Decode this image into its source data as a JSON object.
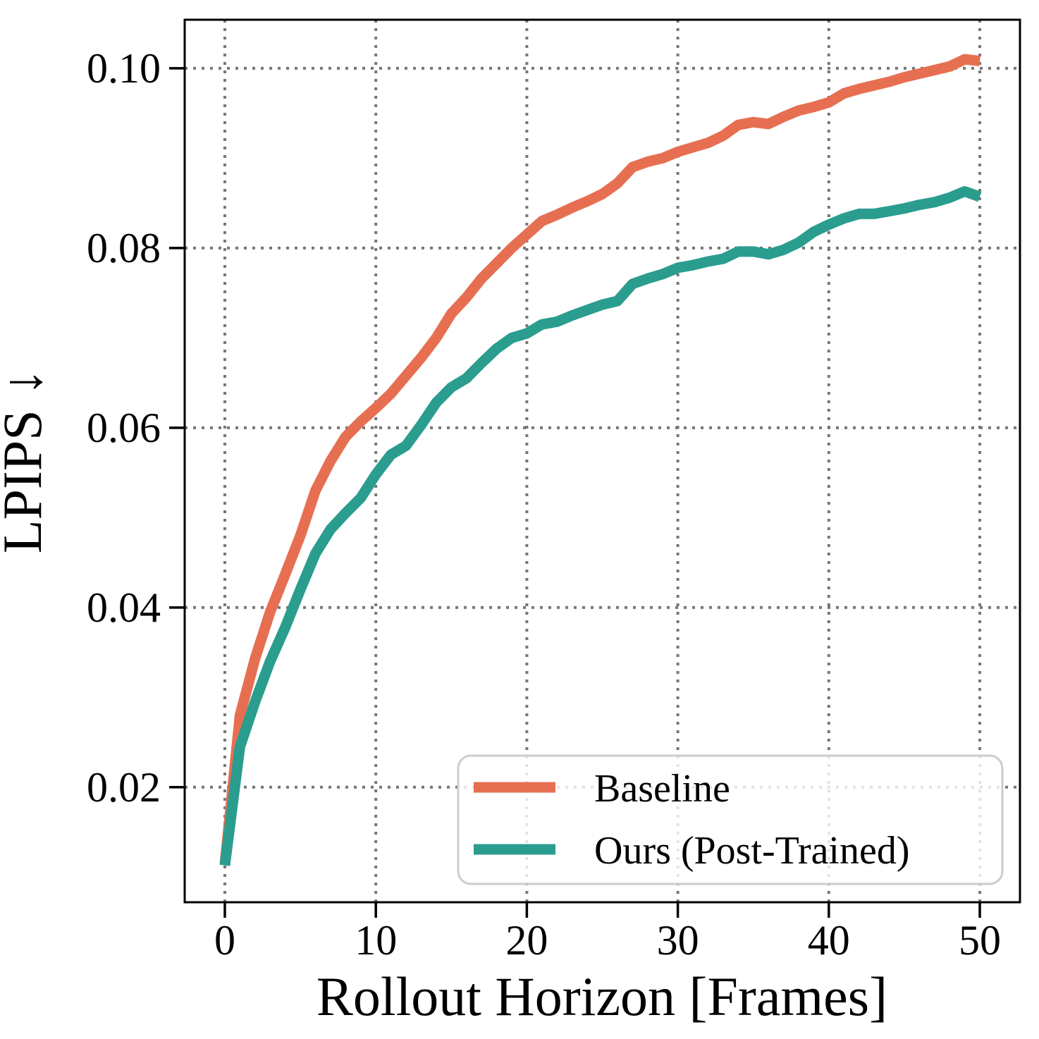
{
  "chart_data": {
    "type": "line",
    "title": "",
    "xlabel": "Rollout Horizon [Frames]",
    "ylabel": "LPIPS ↓",
    "grid": true,
    "grid_style": "dotted",
    "legend_position": "lower right",
    "xlim": [
      -2.66,
      52.66
    ],
    "ylim": [
      0.0072,
      0.1054
    ],
    "x_ticks": [
      0,
      10,
      20,
      30,
      40,
      50
    ],
    "y_ticks": [
      0.02,
      0.04,
      0.06,
      0.08,
      0.1
    ],
    "x": [
      0,
      1,
      2,
      3,
      4,
      5,
      6,
      7,
      8,
      9,
      10,
      11,
      12,
      13,
      14,
      15,
      16,
      17,
      18,
      19,
      20,
      21,
      22,
      23,
      24,
      25,
      26,
      27,
      28,
      29,
      30,
      31,
      32,
      33,
      34,
      35,
      36,
      37,
      38,
      39,
      40,
      41,
      42,
      43,
      44,
      45,
      46,
      47,
      48,
      49,
      50
    ],
    "series": [
      {
        "name": "Baseline",
        "color": "#E76F51",
        "values": [
          0.0115,
          0.028,
          0.0343,
          0.0395,
          0.0437,
          0.048,
          0.053,
          0.0563,
          0.059,
          0.0607,
          0.0622,
          0.0638,
          0.0658,
          0.0678,
          0.07,
          0.0727,
          0.0745,
          0.0766,
          0.0783,
          0.08,
          0.0815,
          0.083,
          0.0837,
          0.0845,
          0.0852,
          0.086,
          0.0872,
          0.089,
          0.0896,
          0.09,
          0.0907,
          0.0912,
          0.0917,
          0.0925,
          0.0937,
          0.094,
          0.0938,
          0.0946,
          0.0953,
          0.0957,
          0.0962,
          0.0972,
          0.0977,
          0.0981,
          0.0985,
          0.099,
          0.0994,
          0.0998,
          0.1002,
          0.101,
          0.1008
        ]
      },
      {
        "name": "Ours (Post-Trained)",
        "color": "#2A9D8F",
        "values": [
          0.0113,
          0.0245,
          0.0295,
          0.034,
          0.0378,
          0.042,
          0.046,
          0.0487,
          0.0505,
          0.0522,
          0.0548,
          0.057,
          0.058,
          0.0603,
          0.0628,
          0.0645,
          0.0655,
          0.0672,
          0.0688,
          0.07,
          0.0705,
          0.0715,
          0.0718,
          0.0725,
          0.0731,
          0.0737,
          0.0741,
          0.076,
          0.0766,
          0.0771,
          0.0778,
          0.0781,
          0.0785,
          0.0788,
          0.0796,
          0.0796,
          0.0793,
          0.0798,
          0.0806,
          0.0818,
          0.0826,
          0.0833,
          0.0838,
          0.0838,
          0.0841,
          0.0844,
          0.0848,
          0.0851,
          0.0856,
          0.0863,
          0.0857
        ]
      }
    ]
  },
  "style": {
    "background": "#ffffff",
    "grid_color": "#777777",
    "spine_color": "#000000",
    "line_width": 15
  }
}
